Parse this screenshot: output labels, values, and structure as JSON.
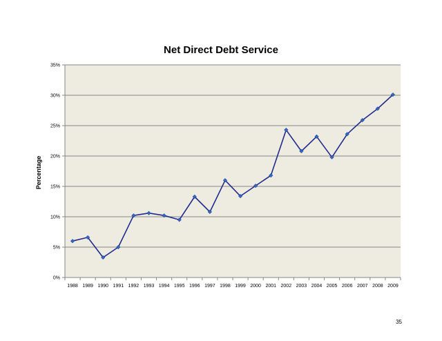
{
  "chart_data": {
    "type": "line",
    "title": "Net Direct Debt Service",
    "xlabel": "",
    "ylabel": "Percentage",
    "x": [
      "1988",
      "1989",
      "1990",
      "1991",
      "1992",
      "1993",
      "1994",
      "1995",
      "1996",
      "1997",
      "1998",
      "1999",
      "2000",
      "2001",
      "2002",
      "2003",
      "2004",
      "2005",
      "2006",
      "2007",
      "2008",
      "2009"
    ],
    "series": [
      {
        "values": [
          6.0,
          6.6,
          3.3,
          5.0,
          10.2,
          10.6,
          10.2,
          9.5,
          13.3,
          10.8,
          16.0,
          13.4,
          15.1,
          16.8,
          24.3,
          20.8,
          23.2,
          19.8,
          23.6,
          25.9,
          27.8,
          30.1
        ]
      }
    ],
    "ylim": [
      0,
      35
    ],
    "yticks": [
      "0%",
      "5%",
      "10%",
      "15%",
      "20%",
      "25%",
      "30%",
      "35%"
    ],
    "grid": true,
    "colors": {
      "line": "#1f2a8c",
      "marker": "#2e6bc0",
      "plot_background": "#eeece1",
      "gridline": "#868686"
    }
  },
  "page": {
    "number": "35"
  }
}
